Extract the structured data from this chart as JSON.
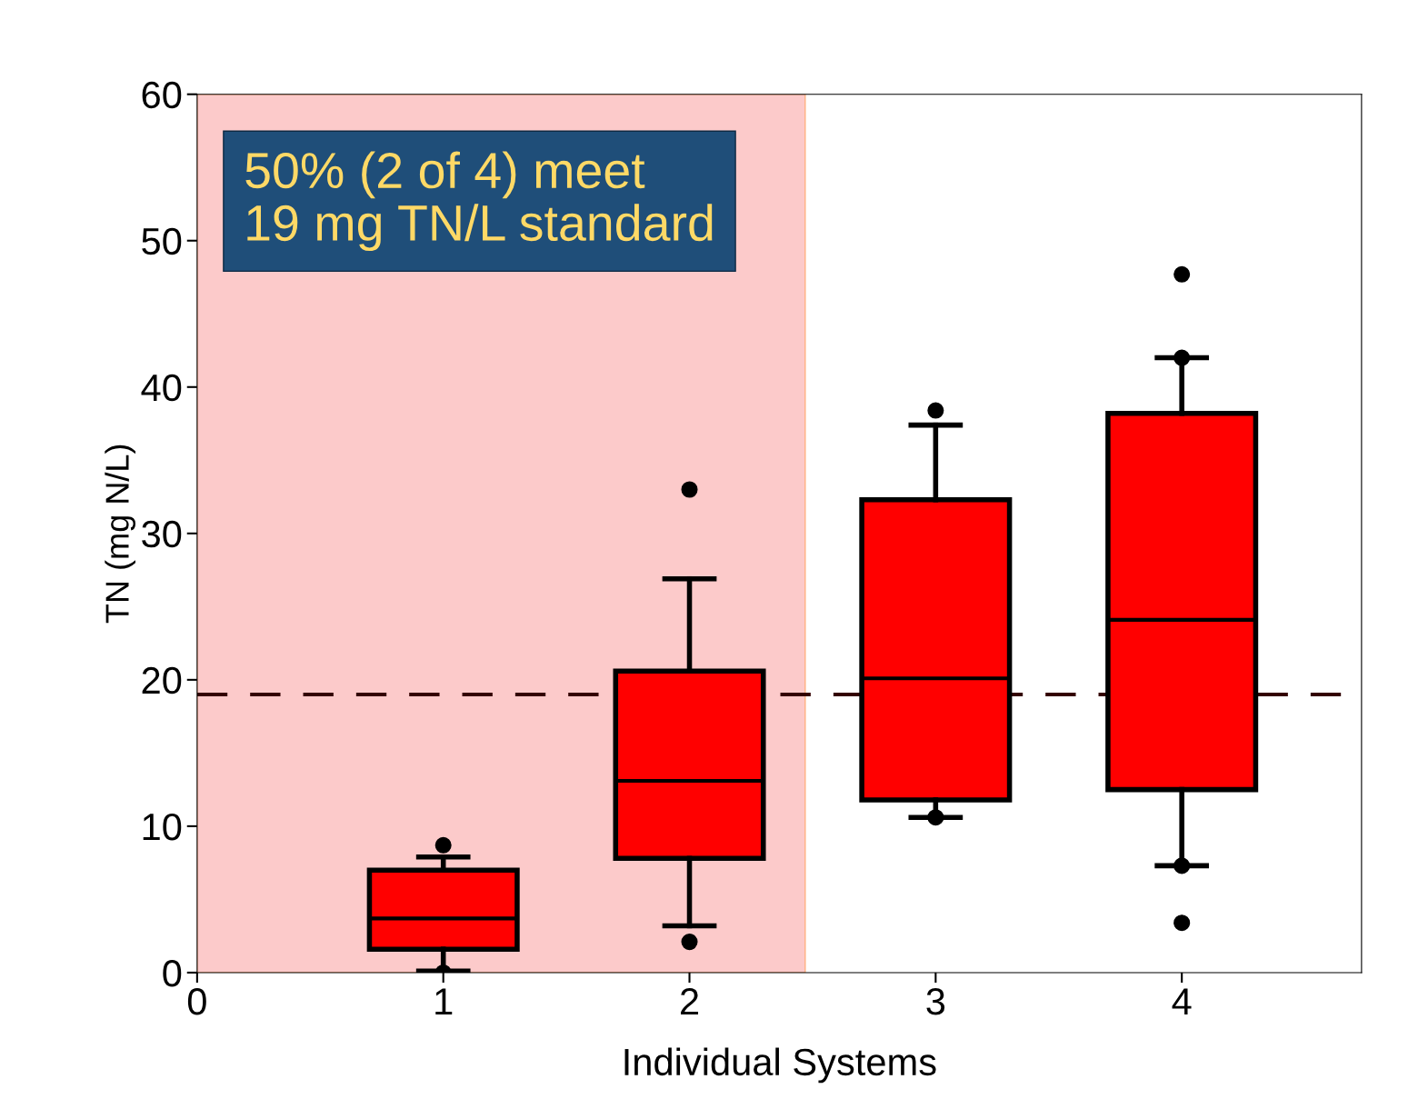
{
  "chart_data": {
    "type": "box",
    "xlabel": "Individual Systems",
    "ylabel": "TN (mg N/L)",
    "x": [
      1,
      2,
      3,
      4
    ],
    "color": "#ff0000",
    "xlim": [
      0,
      4.73
    ],
    "xticks": [
      0,
      1,
      2,
      3,
      4
    ],
    "ylim": [
      0,
      60
    ],
    "yticks": [
      0,
      10,
      20,
      30,
      40,
      50,
      60
    ],
    "grid": false,
    "boxes": [
      {
        "low": 0.1,
        "q1": 1.6,
        "median": 3.7,
        "q3": 7.0,
        "high": 7.9,
        "outliers": [
          8.7,
          0.0
        ]
      },
      {
        "low": 3.2,
        "q1": 7.8,
        "median": 13.1,
        "q3": 20.6,
        "high": 26.9,
        "outliers": [
          33.0,
          2.1
        ]
      },
      {
        "low": 10.6,
        "q1": 11.8,
        "median": 20.1,
        "q3": 32.3,
        "high": 37.4,
        "outliers": [
          38.4,
          10.6
        ]
      },
      {
        "low": 7.3,
        "q1": 12.5,
        "median": 24.1,
        "q3": 38.2,
        "high": 42.0,
        "outliers": [
          47.7,
          42.0,
          7.3,
          3.4
        ]
      }
    ],
    "ref_lines": [
      {
        "axis": "y",
        "value": 19,
        "color": "#330000",
        "line_style": "dashed"
      }
    ],
    "bands": [
      {
        "axis": "x",
        "from": 0,
        "to": 2.47,
        "color": "#fccaca"
      }
    ],
    "annotations": [
      "50% (2 of 4) meet\n19 mg TN/L standard"
    ]
  }
}
